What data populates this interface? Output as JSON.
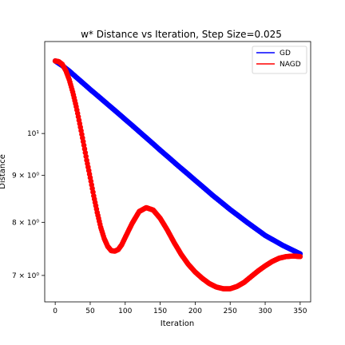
{
  "chart_data": {
    "type": "line",
    "title": "w* Distance vs Iteration, Step Size=0.025",
    "xlabel": "Iteration",
    "ylabel": "Distance",
    "xlim": [
      -15,
      365
    ],
    "ylim": [
      6.55,
      12.6
    ],
    "yscale": "log",
    "x_ticks": [
      0,
      50,
      100,
      150,
      200,
      250,
      300,
      350
    ],
    "y_ticks": [
      {
        "value": 7,
        "label": "7 × 10⁰"
      },
      {
        "value": 8,
        "label": "8 × 10⁰"
      },
      {
        "value": 9,
        "label": "9 × 10⁰"
      },
      {
        "value": 10,
        "label": "10¹"
      }
    ],
    "legend_position": "top-right",
    "grid": false,
    "series": [
      {
        "name": "GD",
        "color": "#0000ff",
        "x": [
          0,
          10,
          20,
          30,
          50,
          75,
          100,
          125,
          150,
          175,
          200,
          225,
          250,
          275,
          300,
          325,
          350
        ],
        "y": [
          12.0,
          11.86,
          11.7,
          11.52,
          11.17,
          10.76,
          10.36,
          9.97,
          9.59,
          9.23,
          8.89,
          8.56,
          8.26,
          7.99,
          7.74,
          7.55,
          7.39
        ]
      },
      {
        "name": "NAGD",
        "color": "#ff0000",
        "x": [
          0,
          5,
          10,
          15,
          20,
          25,
          30,
          35,
          40,
          45,
          50,
          55,
          60,
          65,
          70,
          75,
          80,
          85,
          90,
          95,
          100,
          110,
          120,
          130,
          140,
          150,
          160,
          170,
          180,
          190,
          200,
          210,
          220,
          230,
          240,
          250,
          260,
          270,
          280,
          290,
          300,
          310,
          320,
          330,
          340,
          350
        ],
        "y": [
          12.0,
          11.98,
          11.9,
          11.72,
          11.45,
          11.1,
          10.7,
          10.25,
          9.8,
          9.35,
          8.95,
          8.55,
          8.2,
          7.9,
          7.68,
          7.53,
          7.45,
          7.44,
          7.47,
          7.56,
          7.7,
          7.98,
          8.22,
          8.3,
          8.25,
          8.08,
          7.85,
          7.6,
          7.38,
          7.2,
          7.06,
          6.95,
          6.86,
          6.8,
          6.77,
          6.77,
          6.81,
          6.88,
          6.98,
          7.08,
          7.17,
          7.25,
          7.31,
          7.34,
          7.35,
          7.34
        ]
      }
    ]
  }
}
